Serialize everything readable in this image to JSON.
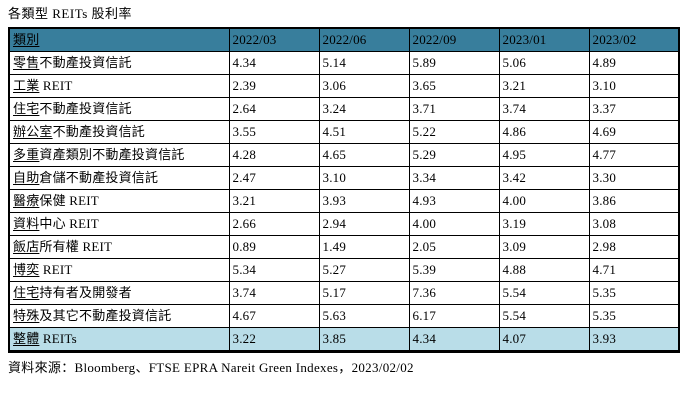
{
  "title": "各類型 REITs 股利率",
  "source": "資料來源：Bloomberg、FTSE EPRA Nareit Green Indexes，2023/02/02",
  "colors": {
    "header_bg": "#387E9C",
    "total_bg": "#B9DDE8",
    "border": "#000000"
  },
  "table": {
    "header": {
      "category": "類別",
      "periods": [
        "2022/03",
        "2022/06",
        "2022/09",
        "2023/01",
        "2023/02"
      ]
    },
    "rows": [
      {
        "head": "零售",
        "tail": "不動產投資信託",
        "values": [
          "4.34",
          "5.14",
          "5.89",
          "5.06",
          "4.89"
        ]
      },
      {
        "head": "工業",
        "tail": " REIT",
        "values": [
          "2.39",
          "3.06",
          "3.65",
          "3.21",
          "3.10"
        ]
      },
      {
        "head": "住宅",
        "tail": "不動產投資信託",
        "values": [
          "2.64",
          "3.24",
          "3.71",
          "3.74",
          "3.37"
        ]
      },
      {
        "head": "辦公室",
        "tail": "不動產投資信託",
        "values": [
          "3.55",
          "4.51",
          "5.22",
          "4.86",
          "4.69"
        ]
      },
      {
        "head": "多重",
        "tail": "資產類別不動產投資信託",
        "values": [
          "4.28",
          "4.65",
          "5.29",
          "4.95",
          "4.77"
        ]
      },
      {
        "head": "自助",
        "tail": "倉儲不動產投資信託",
        "values": [
          "2.47",
          "3.10",
          "3.34",
          "3.42",
          "3.30"
        ]
      },
      {
        "head": "醫療",
        "tail": "保健 REIT",
        "values": [
          "3.21",
          "3.93",
          "4.93",
          "4.00",
          "3.86"
        ]
      },
      {
        "head": "資料",
        "tail": "中心 REIT",
        "values": [
          "2.66",
          "2.94",
          "4.00",
          "3.19",
          "3.08"
        ]
      },
      {
        "head": "飯店",
        "tail": "所有權 REIT",
        "values": [
          "0.89",
          "1.49",
          "2.05",
          "3.09",
          "2.98"
        ]
      },
      {
        "head": "博奕",
        "tail": " REIT",
        "values": [
          "5.34",
          "5.27",
          "5.39",
          "4.88",
          "4.71"
        ]
      },
      {
        "head": "住宅",
        "tail": "持有者及開發者",
        "values": [
          "3.74",
          "5.17",
          "7.36",
          "5.54",
          "5.35"
        ]
      },
      {
        "head": "特殊",
        "tail": "及其它不動產投資信託",
        "values": [
          "4.67",
          "5.63",
          "6.17",
          "5.54",
          "5.35"
        ]
      },
      {
        "head": "整體",
        "tail": " REITs",
        "values": [
          "3.22",
          "3.85",
          "4.34",
          "4.07",
          "3.93"
        ]
      }
    ]
  }
}
